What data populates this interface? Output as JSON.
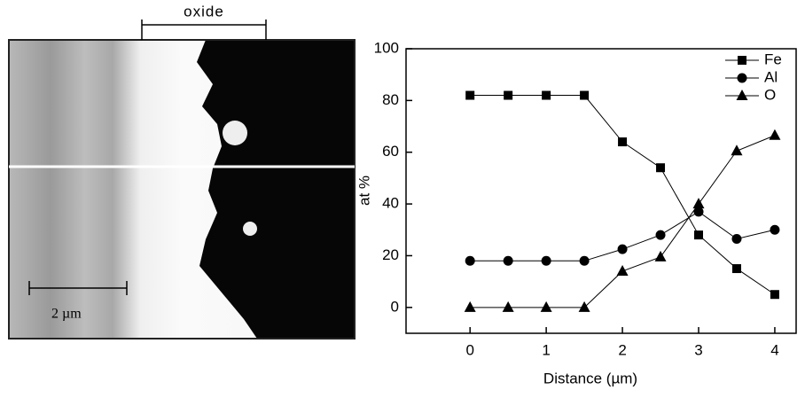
{
  "micrograph": {
    "region_label": "oxide",
    "scale_bar_label": "2 µm"
  },
  "chart_data": {
    "type": "line",
    "x_label": "Distance (µm)",
    "y_label": "at %",
    "x": [
      0,
      0.5,
      1,
      1.5,
      2,
      2.5,
      3,
      3.5,
      4
    ],
    "series": [
      {
        "name": "Fe",
        "color": "#000000",
        "marker": "square",
        "values": [
          82,
          82,
          82,
          82,
          64,
          54,
          28,
          15,
          5
        ]
      },
      {
        "name": "Al",
        "color": "#000000",
        "marker": "circle",
        "values": [
          18,
          18,
          18,
          18,
          22.5,
          28,
          37,
          26.5,
          30
        ]
      },
      {
        "name": "O",
        "color": "#000000",
        "marker": "triangle",
        "values": [
          0,
          0,
          0,
          0,
          14,
          19.5,
          40,
          60.5,
          66.5
        ]
      }
    ],
    "xlim": [
      -0.84,
      4.28
    ],
    "ylim": [
      -10,
      100
    ],
    "xticks": [
      0,
      1,
      2,
      3,
      4
    ],
    "yticks": [
      0,
      20,
      40,
      60,
      80,
      100
    ],
    "grid": false,
    "legend": "upper right"
  }
}
